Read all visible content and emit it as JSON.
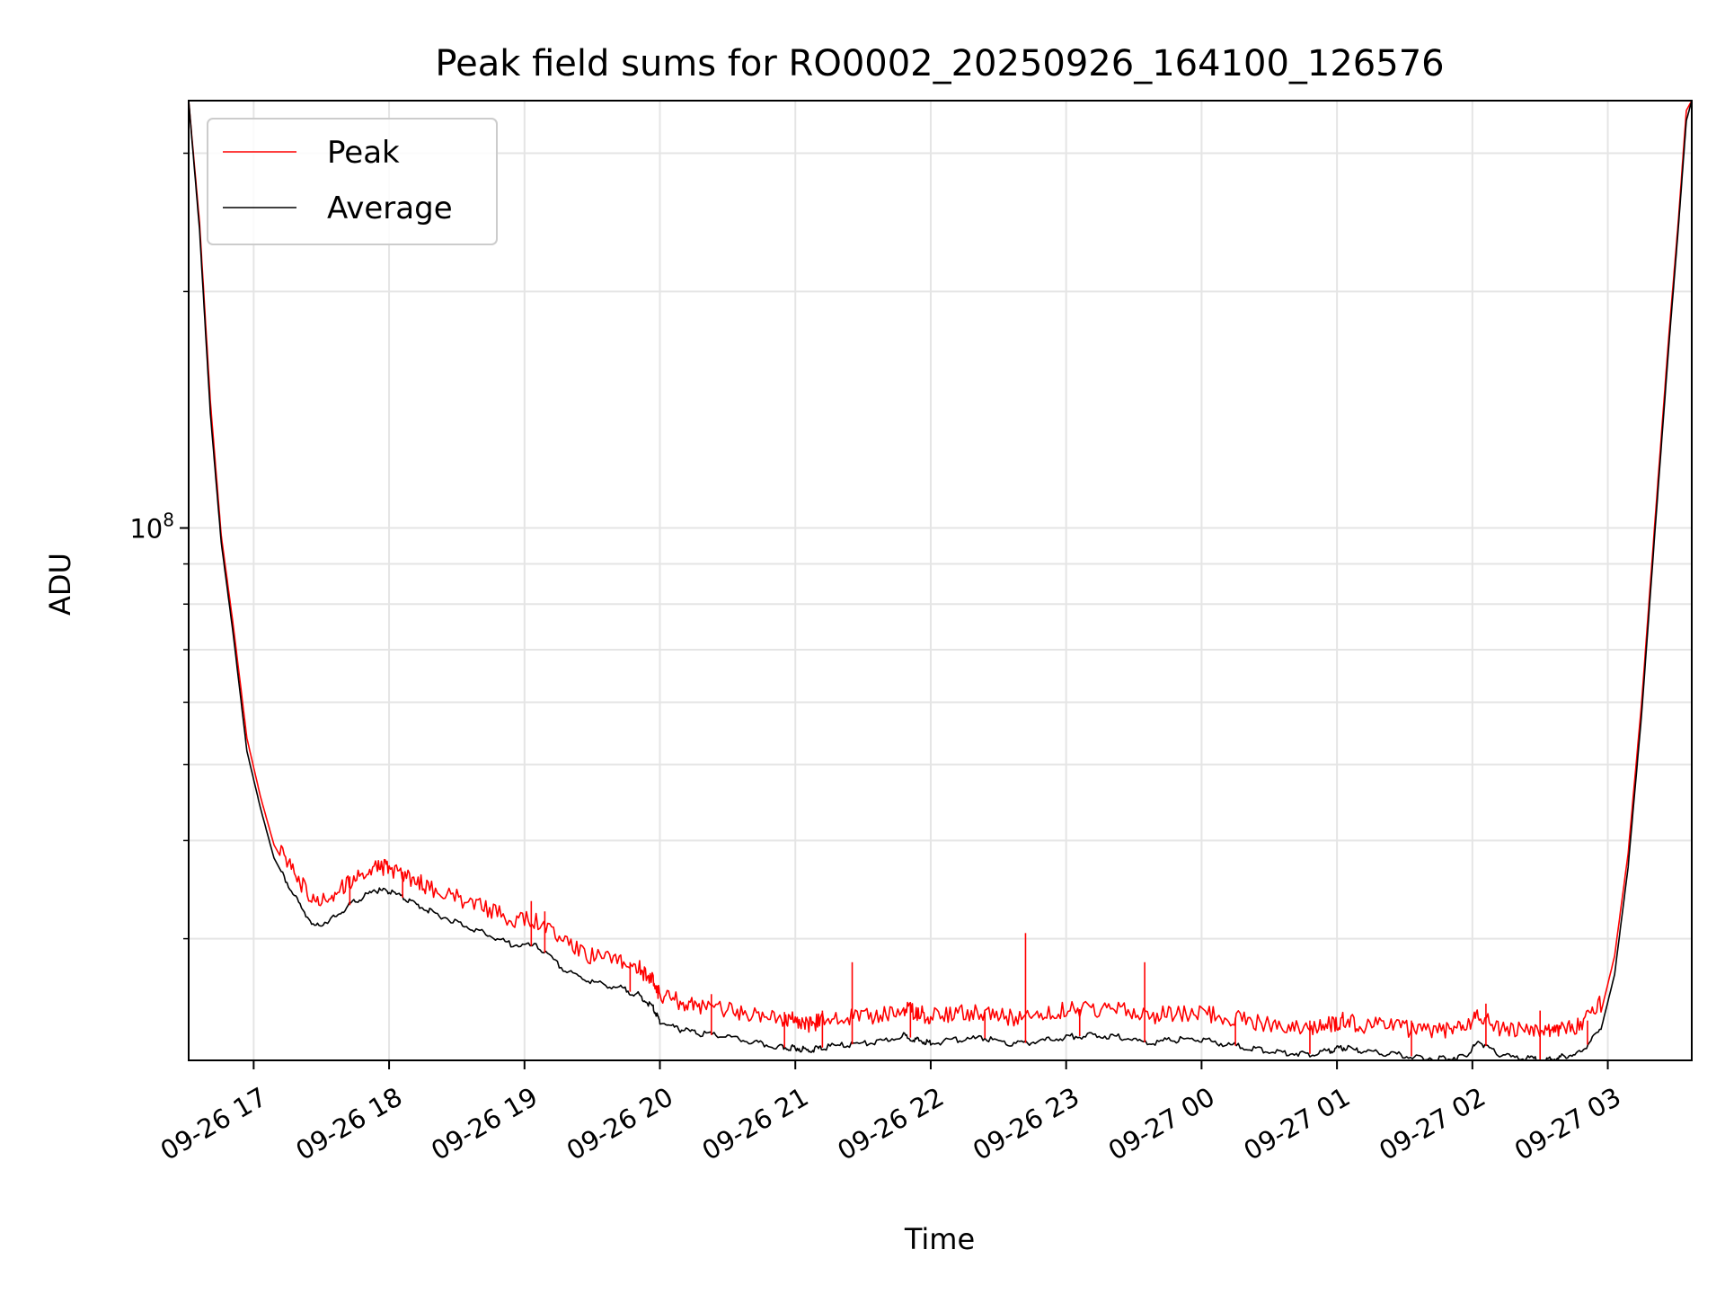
{
  "chart_data": {
    "type": "line",
    "title": "Peak field sums for RO0002_20250926_164100_126576",
    "xlabel": "Time",
    "ylabel": "ADU",
    "yscale": "log",
    "ylim": [
      21000000,
      350000000
    ],
    "xlim_hours_from_2025_09_26_1600": [
      0.52,
      11.62
    ],
    "grid": true,
    "legend_position": "upper-left",
    "y_major_tick": {
      "label_base": "10",
      "label_exp": "8",
      "value": 100000000
    },
    "y_minor_ticks": [
      30000000,
      40000000,
      50000000,
      60000000,
      70000000,
      80000000,
      90000000,
      200000000,
      300000000
    ],
    "x_ticks": [
      {
        "label": "09-26 17",
        "hour": 1
      },
      {
        "label": "09-26 18",
        "hour": 2
      },
      {
        "label": "09-26 19",
        "hour": 3
      },
      {
        "label": "09-26 20",
        "hour": 4
      },
      {
        "label": "09-26 21",
        "hour": 5
      },
      {
        "label": "09-26 22",
        "hour": 6
      },
      {
        "label": "09-26 23",
        "hour": 7
      },
      {
        "label": "09-27 00",
        "hour": 8
      },
      {
        "label": "09-27 01",
        "hour": 9
      },
      {
        "label": "09-27 02",
        "hour": 10
      },
      {
        "label": "09-27 03",
        "hour": 11
      }
    ],
    "series": [
      {
        "name": "Average",
        "color": "#000000",
        "x_hours": [
          0.52,
          0.6,
          0.68,
          0.76,
          0.85,
          0.95,
          1.05,
          1.15,
          1.3,
          1.45,
          1.6,
          1.75,
          1.9,
          2.0,
          2.15,
          2.3,
          2.5,
          2.7,
          2.9,
          3.1,
          3.3,
          3.5,
          3.7,
          3.85,
          3.95,
          4.0,
          4.15,
          4.3,
          4.5,
          4.7,
          4.9,
          5.0,
          5.1,
          5.2,
          5.4,
          5.6,
          5.8,
          5.9,
          6.0,
          6.2,
          6.4,
          6.6,
          6.8,
          7.0,
          7.2,
          7.4,
          7.6,
          7.8,
          8.0,
          8.2,
          8.4,
          8.6,
          8.8,
          8.95,
          9.05,
          9.2,
          9.4,
          9.6,
          9.8,
          9.95,
          10.05,
          10.2,
          10.4,
          10.55,
          10.65,
          10.8,
          10.95,
          11.05,
          11.15,
          11.25,
          11.35,
          11.45,
          11.52,
          11.58,
          11.62
        ],
        "values": [
          350000000,
          240000000,
          140000000,
          96000000,
          73000000,
          52000000,
          44000000,
          38000000,
          34000000,
          31000000,
          32000000,
          33500000,
          34500000,
          34500000,
          33500000,
          32500000,
          31500000,
          30500000,
          29500000,
          29300000,
          27300000,
          26400000,
          26000000,
          25400000,
          24500000,
          23500000,
          23000000,
          22700000,
          22500000,
          22100000,
          21800000,
          21800000,
          21600000,
          21800000,
          22000000,
          22100000,
          22600000,
          22300000,
          22100000,
          22300000,
          22400000,
          22000000,
          22200000,
          22500000,
          22600000,
          22500000,
          22100000,
          22300000,
          22300000,
          22000000,
          21700000,
          21500000,
          21400000,
          21600000,
          21800000,
          21500000,
          21400000,
          21200000,
          21100000,
          21300000,
          22200000,
          21300000,
          21100000,
          21000000,
          21200000,
          21500000,
          23000000,
          27000000,
          37000000,
          58000000,
          100000000,
          170000000,
          240000000,
          330000000,
          350000000
        ]
      },
      {
        "name": "Peak",
        "color": "#ff0000",
        "x_hours": [
          0.52,
          0.6,
          0.68,
          0.76,
          0.85,
          0.95,
          1.05,
          1.15,
          1.3,
          1.45,
          1.6,
          1.75,
          1.9,
          2.0,
          2.15,
          2.3,
          2.5,
          2.7,
          2.9,
          3.1,
          3.3,
          3.5,
          3.7,
          3.85,
          3.95,
          4.0,
          4.15,
          4.3,
          4.5,
          4.7,
          4.9,
          5.0,
          5.1,
          5.2,
          5.4,
          5.6,
          5.8,
          5.9,
          6.0,
          6.2,
          6.4,
          6.6,
          6.8,
          7.0,
          7.2,
          7.4,
          7.6,
          7.8,
          8.0,
          8.2,
          8.4,
          8.6,
          8.8,
          8.95,
          9.05,
          9.2,
          9.4,
          9.6,
          9.8,
          9.95,
          10.05,
          10.2,
          10.4,
          10.55,
          10.65,
          10.8,
          10.95,
          11.05,
          11.15,
          11.25,
          11.35,
          11.45,
          11.52,
          11.58,
          11.62
        ],
        "values": [
          350000000,
          245000000,
          145000000,
          98000000,
          75000000,
          54000000,
          45500000,
          39500000,
          35500000,
          32300000,
          33400000,
          35000000,
          36000000,
          36000000,
          35000000,
          34000000,
          33000000,
          32000000,
          31000000,
          30800000,
          28800000,
          27800000,
          27400000,
          26800000,
          25800000,
          24800000,
          24300000,
          24000000,
          23700000,
          23300000,
          23000000,
          23000000,
          22800000,
          23000000,
          23200000,
          23300000,
          23800000,
          23500000,
          23300000,
          23500000,
          23600000,
          23200000,
          23400000,
          23700000,
          23800000,
          23700000,
          23300000,
          23500000,
          23500000,
          23200000,
          22900000,
          22700000,
          22600000,
          22800000,
          23000000,
          22700000,
          22600000,
          22400000,
          22300000,
          22500000,
          23400000,
          22500000,
          22300000,
          22200000,
          22400000,
          22700000,
          24200000,
          28500000,
          38500000,
          60000000,
          103000000,
          175000000,
          245000000,
          340000000,
          350000000
        ],
        "spikes": [
          {
            "hour": 1.71,
            "value": 36000000
          },
          {
            "hour": 2.1,
            "value": 36500000
          },
          {
            "hour": 3.05,
            "value": 33500000
          },
          {
            "hour": 3.15,
            "value": 32500000
          },
          {
            "hour": 3.78,
            "value": 28000000
          },
          {
            "hour": 4.38,
            "value": 25500000
          },
          {
            "hour": 4.92,
            "value": 24200000
          },
          {
            "hour": 5.2,
            "value": 24300000
          },
          {
            "hour": 5.42,
            "value": 28000000
          },
          {
            "hour": 5.85,
            "value": 24800000
          },
          {
            "hour": 6.4,
            "value": 24200000
          },
          {
            "hour": 6.7,
            "value": 30500000
          },
          {
            "hour": 7.1,
            "value": 24400000
          },
          {
            "hour": 7.58,
            "value": 28000000
          },
          {
            "hour": 8.25,
            "value": 23800000
          },
          {
            "hour": 8.8,
            "value": 23600000
          },
          {
            "hour": 9.55,
            "value": 23600000
          },
          {
            "hour": 10.1,
            "value": 24800000
          },
          {
            "hour": 10.5,
            "value": 24300000
          },
          {
            "hour": 10.85,
            "value": 23600000
          }
        ]
      }
    ],
    "legend": [
      {
        "label": "Peak",
        "color": "#ff0000"
      },
      {
        "label": "Average",
        "color": "#000000"
      }
    ]
  }
}
